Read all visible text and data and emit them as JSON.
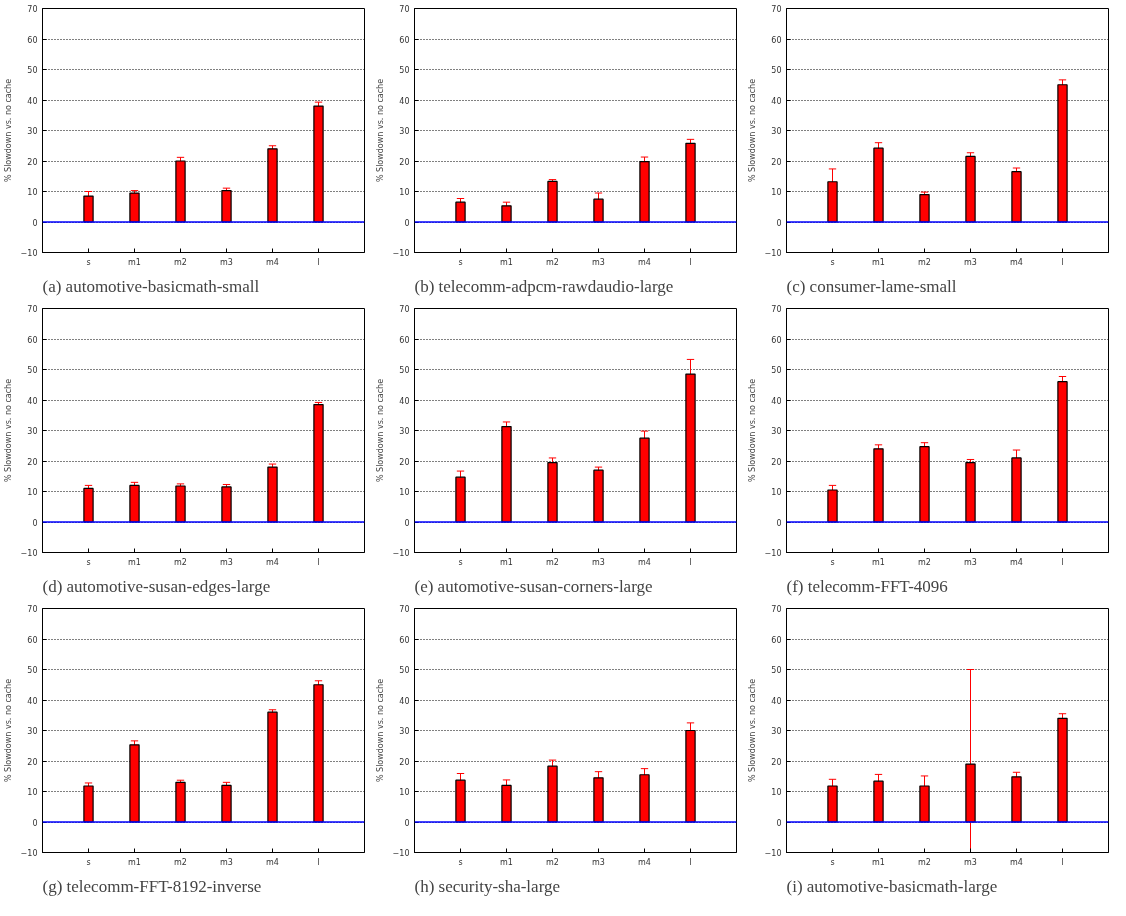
{
  "chart_data": [
    {
      "type": "bar",
      "title": "(a) automotive-basicmath-small",
      "ylabel": "% Slowdown vs. no cache",
      "categories": [
        "s",
        "m1",
        "m2",
        "m3",
        "m4",
        "l"
      ],
      "color": "#ff0000",
      "values": [
        8.5,
        9.5,
        20,
        10.3,
        24,
        38
      ],
      "errors": [
        1.5,
        0.8,
        1.2,
        0.8,
        1,
        1.3
      ],
      "ylim": [
        -10,
        70
      ],
      "yticks": [
        -10,
        0,
        10,
        20,
        30,
        40,
        50,
        60,
        70
      ],
      "grid": "y",
      "ref_lines": [
        {
          "axis": "y",
          "value": 0,
          "color": "#0000ff"
        }
      ]
    },
    {
      "type": "bar",
      "title": "(b) telecomm-adpcm-rawdaudio-large",
      "ylabel": "% Slowdown vs. no cache",
      "categories": [
        "s",
        "m1",
        "m2",
        "m3",
        "m4",
        "l"
      ],
      "color": "#ff0000",
      "values": [
        6.5,
        5.3,
        13.3,
        7.5,
        19.8,
        25.8
      ],
      "errors": [
        1.2,
        1.2,
        0.6,
        2,
        1.5,
        1.3
      ],
      "ylim": [
        -10,
        70
      ],
      "yticks": [
        -10,
        0,
        10,
        20,
        30,
        40,
        50,
        60,
        70
      ],
      "grid": "y",
      "ref_lines": [
        {
          "axis": "y",
          "value": 0,
          "color": "#0000ff"
        }
      ]
    },
    {
      "type": "bar",
      "title": "(c) consumer-lame-small",
      "ylabel": "% Slowdown vs. no cache",
      "categories": [
        "s",
        "m1",
        "m2",
        "m3",
        "m4",
        "l"
      ],
      "color": "#ff0000",
      "values": [
        13.2,
        24.2,
        9,
        21.5,
        16.5,
        45
      ],
      "errors": [
        4.2,
        1.8,
        0.8,
        1.2,
        1.2,
        1.6
      ],
      "ylim": [
        -10,
        70
      ],
      "yticks": [
        -10,
        0,
        10,
        20,
        30,
        40,
        50,
        60,
        70
      ],
      "grid": "y",
      "ref_lines": [
        {
          "axis": "y",
          "value": 0,
          "color": "#0000ff"
        }
      ]
    },
    {
      "type": "bar",
      "title": "(d) automotive-susan-edges-large",
      "ylabel": "% Slowdown vs. no cache",
      "categories": [
        "s",
        "m1",
        "m2",
        "m3",
        "m4",
        "l"
      ],
      "color": "#ff0000",
      "values": [
        11,
        12,
        11.8,
        11.5,
        18,
        38.5
      ],
      "errors": [
        1,
        1,
        0.7,
        0.8,
        1,
        0.7
      ],
      "ylim": [
        -10,
        70
      ],
      "yticks": [
        -10,
        0,
        10,
        20,
        30,
        40,
        50,
        60,
        70
      ],
      "grid": "y",
      "ref_lines": [
        {
          "axis": "y",
          "value": 0,
          "color": "#0000ff"
        }
      ]
    },
    {
      "type": "bar",
      "title": "(e) automotive-susan-corners-large",
      "ylabel": "% Slowdown vs. no cache",
      "categories": [
        "s",
        "m1",
        "m2",
        "m3",
        "m4",
        "l"
      ],
      "color": "#ff0000",
      "values": [
        14.7,
        31.3,
        19.5,
        17,
        27.5,
        48.5
      ],
      "errors": [
        2,
        1.5,
        1.5,
        1,
        2.3,
        4.8
      ],
      "ylim": [
        -10,
        70
      ],
      "yticks": [
        -10,
        0,
        10,
        20,
        30,
        40,
        50,
        60,
        70
      ],
      "grid": "y",
      "ref_lines": [
        {
          "axis": "y",
          "value": 0,
          "color": "#0000ff"
        }
      ]
    },
    {
      "type": "bar",
      "title": "(f) telecomm-FFT-4096",
      "ylabel": "% Slowdown vs. no cache",
      "categories": [
        "s",
        "m1",
        "m2",
        "m3",
        "m4",
        "l"
      ],
      "color": "#ff0000",
      "values": [
        10.5,
        24,
        24.7,
        19.5,
        21,
        46
      ],
      "errors": [
        1.5,
        1.3,
        1.3,
        1,
        2.6,
        1.7
      ],
      "ylim": [
        -10,
        70
      ],
      "yticks": [
        -10,
        0,
        10,
        20,
        30,
        40,
        50,
        60,
        70
      ],
      "grid": "y",
      "ref_lines": [
        {
          "axis": "y",
          "value": 0,
          "color": "#0000ff"
        }
      ]
    },
    {
      "type": "bar",
      "title": "(g) telecomm-FFT-8192-inverse",
      "ylabel": "% Slowdown vs. no cache",
      "categories": [
        "s",
        "m1",
        "m2",
        "m3",
        "m4",
        "l"
      ],
      "color": "#ff0000",
      "values": [
        11.8,
        25.3,
        13,
        12,
        36,
        45
      ],
      "errors": [
        1,
        1.3,
        0.7,
        1,
        0.8,
        1.3
      ],
      "ylim": [
        -10,
        70
      ],
      "yticks": [
        -10,
        0,
        10,
        20,
        30,
        40,
        50,
        60,
        70
      ],
      "grid": "y",
      "ref_lines": [
        {
          "axis": "y",
          "value": 0,
          "color": "#0000ff"
        }
      ]
    },
    {
      "type": "bar",
      "title": "(h) security-sha-large",
      "ylabel": "% Slowdown vs. no cache",
      "categories": [
        "s",
        "m1",
        "m2",
        "m3",
        "m4",
        "l"
      ],
      "color": "#ff0000",
      "values": [
        13.7,
        12,
        18.3,
        14.5,
        15.5,
        30
      ],
      "errors": [
        2.2,
        1.8,
        2,
        2,
        2,
        2.5
      ],
      "ylim": [
        -10,
        70
      ],
      "yticks": [
        -10,
        0,
        10,
        20,
        30,
        40,
        50,
        60,
        70
      ],
      "grid": "y",
      "ref_lines": [
        {
          "axis": "y",
          "value": 0,
          "color": "#0000ff"
        }
      ]
    },
    {
      "type": "bar",
      "title": "(i) automotive-basicmath-large",
      "ylabel": "% Slowdown vs. no cache",
      "categories": [
        "s",
        "m1",
        "m2",
        "m3",
        "m4",
        "l"
      ],
      "color": "#ff0000",
      "values": [
        11.8,
        13.4,
        11.8,
        19,
        14.8,
        34
      ],
      "errors": [
        2.2,
        2.2,
        3.3,
        [
          -10,
          50
        ],
        1.5,
        1.5
      ],
      "ylim": [
        -10,
        70
      ],
      "yticks": [
        -10,
        0,
        10,
        20,
        30,
        40,
        50,
        60,
        70
      ],
      "grid": "y",
      "ref_lines": [
        {
          "axis": "y",
          "value": 0,
          "color": "#0000ff"
        }
      ]
    }
  ]
}
